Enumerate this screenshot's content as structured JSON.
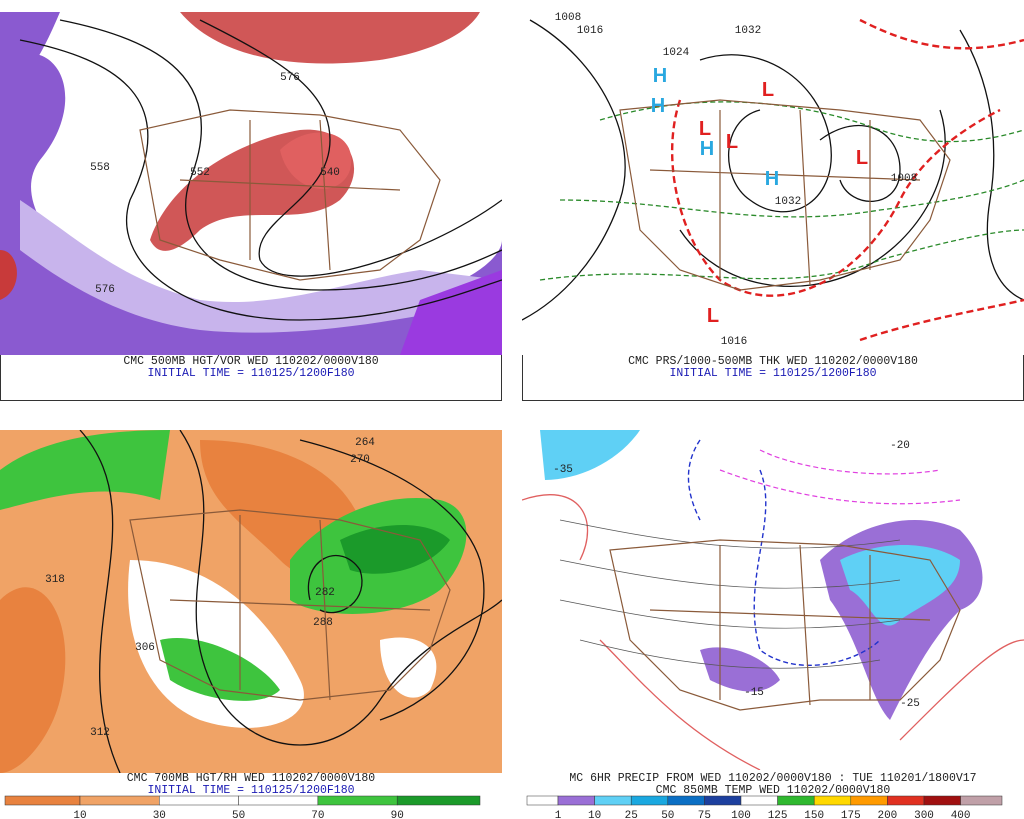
{
  "panels": [
    {
      "caption": "CMC 500MB HGT/VOR WED 110202/0000V180",
      "subcaption": "INITIAL TIME = 110125/1200F180",
      "labels": [
        "576",
        "558",
        "540",
        "552",
        "576"
      ]
    },
    {
      "caption": "CMC PRS/1000-500MB THK WED 110202/0000V180",
      "subcaption": "INITIAL TIME = 110125/1200F180",
      "labels": [
        "H",
        "H",
        "H",
        "H",
        "L",
        "L",
        "L",
        "L",
        "L",
        "1008",
        "1016",
        "1024",
        "1032",
        "1008",
        "1016",
        "1032"
      ]
    },
    {
      "caption": "CMC 700MB HGT/RH WED 110202/0000V180",
      "subcaption": "INITIAL TIME = 110125/1200F180",
      "labels": [
        "318",
        "312",
        "306",
        "264",
        "270",
        "282",
        "288"
      ],
      "colorbar": {
        "labels": [
          "10",
          "30",
          "50",
          "70",
          "90"
        ],
        "colors": [
          "#e8823f",
          "#f0a366",
          "#ffffff",
          "#ffffff",
          "#3ec43e",
          "#1b9a2a"
        ]
      }
    },
    {
      "caption": "MC 6HR PRECIP FROM WED 110202/0000V180 : TUE 110201/1800V17",
      "subcaption": "CMC 850MB TEMP WED 110202/0000V180",
      "labels": [
        "-35",
        "-15",
        "-20",
        "-25"
      ],
      "colorbar": {
        "labels": [
          "1",
          "10",
          "25",
          "50",
          "75",
          "100",
          "125",
          "150",
          "175",
          "200",
          "300",
          "400"
        ],
        "colors": [
          "#ffffff",
          "#9a6fd6",
          "#5fd0f5",
          "#1aa8e0",
          "#0b6fc4",
          "#1c3f9e",
          "#ffffff",
          "#2fb82f",
          "#ffd800",
          "#ff9a00",
          "#e03020",
          "#a01010",
          "#c0a0a8"
        ]
      }
    }
  ]
}
